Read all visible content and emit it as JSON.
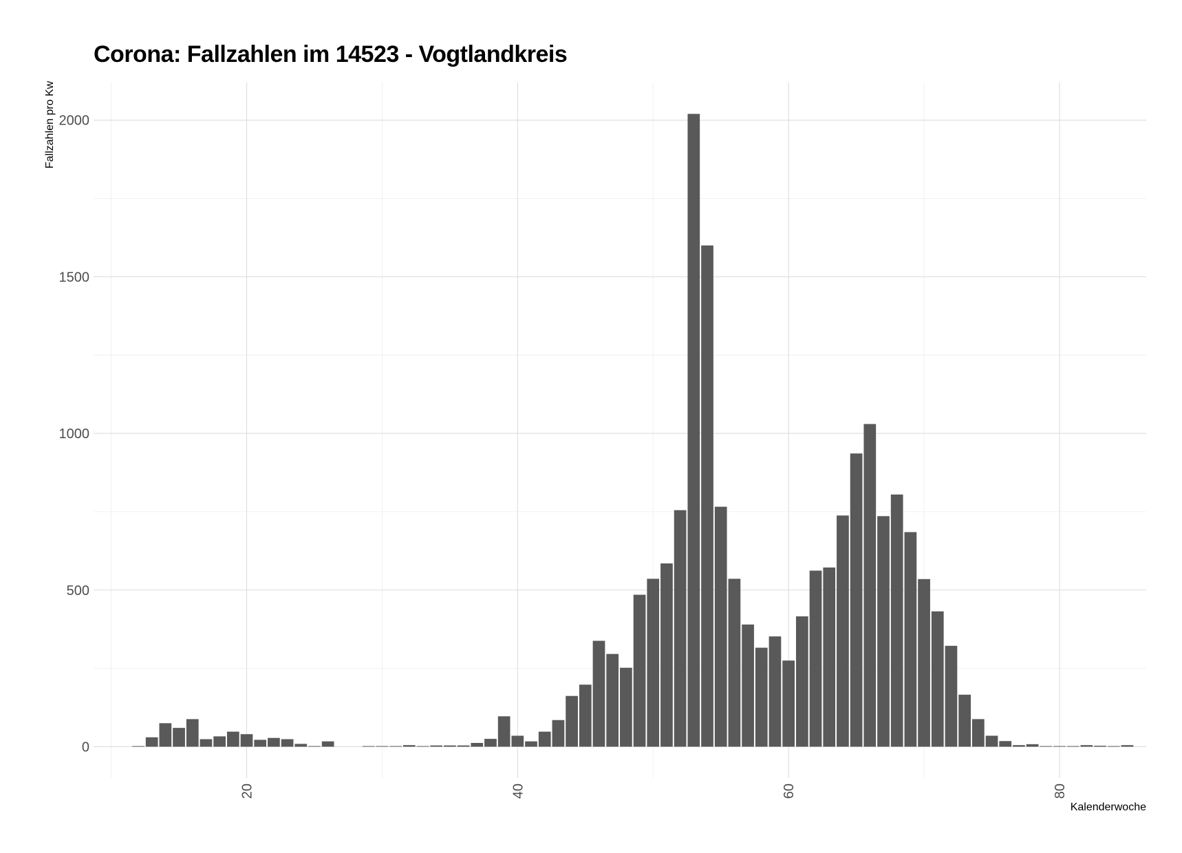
{
  "chart_data": {
    "type": "bar",
    "title": "Corona: Fallzahlen im 14523 - Vogtlandkreis",
    "xlabel": "Kalenderwoche",
    "ylabel": "Fallzahlen pro Kw",
    "xlim": [
      8.7,
      86.4
    ],
    "ylim": [
      -100,
      2120
    ],
    "x_ticks": [
      20,
      40,
      60,
      80
    ],
    "y_ticks": [
      0,
      500,
      1000,
      1500,
      2000
    ],
    "grid": true,
    "legend": "none",
    "bar_color": "#595959",
    "x": [
      12,
      13,
      14,
      15,
      16,
      17,
      18,
      19,
      20,
      21,
      22,
      23,
      24,
      25,
      26,
      29,
      30,
      31,
      32,
      33,
      34,
      35,
      36,
      37,
      38,
      39,
      40,
      41,
      42,
      43,
      44,
      45,
      46,
      47,
      48,
      49,
      50,
      51,
      52,
      53,
      54,
      55,
      56,
      57,
      58,
      59,
      60,
      61,
      62,
      63,
      64,
      65,
      66,
      67,
      68,
      69,
      70,
      71,
      72,
      73,
      74,
      75,
      76,
      77,
      78,
      79,
      80,
      81,
      82,
      83,
      84,
      85
    ],
    "values": [
      2,
      30,
      75,
      60,
      88,
      24,
      33,
      48,
      40,
      22,
      28,
      24,
      9,
      2,
      17,
      2,
      2,
      2,
      5,
      2,
      4,
      4,
      4,
      12,
      25,
      97,
      35,
      17,
      48,
      85,
      162,
      198,
      338,
      296,
      252,
      485,
      536,
      585,
      755,
      2020,
      1600,
      766,
      536,
      390,
      316,
      352,
      275,
      416,
      562,
      572,
      738,
      936,
      1030,
      736,
      805,
      685,
      535,
      432,
      322,
      166,
      88,
      35,
      18,
      5,
      8,
      2,
      2,
      2,
      5,
      3,
      2,
      5
    ]
  }
}
